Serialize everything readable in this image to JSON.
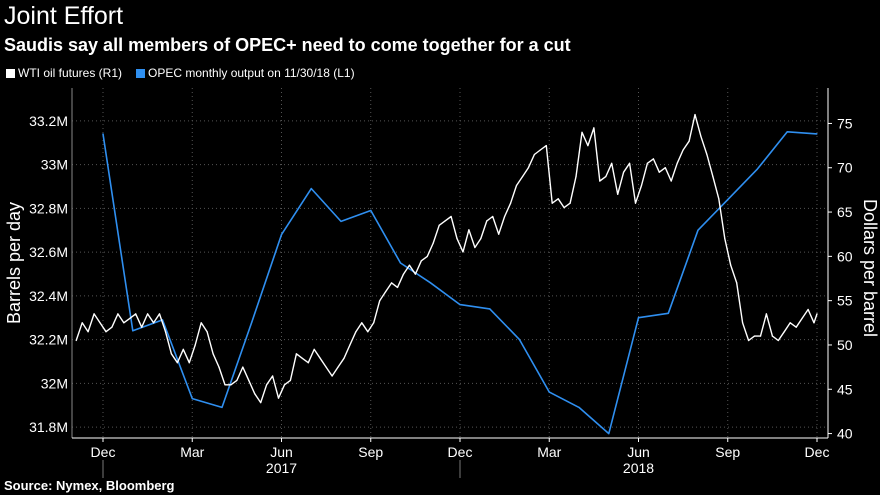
{
  "header": {
    "title": "Joint Effort",
    "subtitle": "Saudis say all members of OPEC+ need to come together for a cut"
  },
  "footer": {
    "source": "Source: Nymex, Bloomberg"
  },
  "chart_data": {
    "type": "line",
    "title": "Joint Effort",
    "subtitle": "Saudis say all members of OPEC+ need to come together for a cut",
    "legend": [
      {
        "name": "WTI oil futures (R1)",
        "color": "#ffffff"
      },
      {
        "name": "OPEC monthly output  on 11/30/18 (L1)",
        "color": "#2f8ff0"
      }
    ],
    "legend_position": "top-left",
    "x_ticks": [
      "Dec",
      "Mar",
      "Jun",
      "Sep",
      "Dec",
      "Mar",
      "Jun",
      "Sep",
      "Dec"
    ],
    "year_labels": [
      "2017",
      "2018"
    ],
    "left_axis": {
      "label": "Barrels per day",
      "range": [
        31.75,
        33.35
      ],
      "ticks": [
        31.8,
        32.0,
        32.2,
        32.4,
        32.6,
        32.8,
        33.0,
        33.2
      ],
      "tick_labels": [
        "31.8M",
        "32M",
        "32.2M",
        "32.4M",
        "32.6M",
        "32.8M",
        "33M",
        "33.2M"
      ]
    },
    "right_axis": {
      "label": "Dollars per barrel",
      "range": [
        39.5,
        79
      ],
      "ticks": [
        40,
        45,
        50,
        55,
        60,
        65,
        70,
        75
      ],
      "tick_labels": [
        "40",
        "45",
        "50",
        "55",
        "60",
        "65",
        "70",
        "75"
      ]
    },
    "x_range": [
      0,
      24.5
    ],
    "series": [
      {
        "name": "OPEC monthly output  on 11/30/18 (L1)",
        "axis": "left",
        "color": "#2f8ff0",
        "x": [
          0,
          1,
          2,
          3,
          4,
          5,
          6,
          7,
          8,
          9,
          10,
          11,
          12,
          13,
          14,
          15,
          16,
          17,
          18,
          19,
          20,
          21,
          22,
          23,
          24
        ],
        "values": [
          33.14,
          32.24,
          32.29,
          31.93,
          31.89,
          32.28,
          32.68,
          32.89,
          32.74,
          32.79,
          32.55,
          32.46,
          32.36,
          32.34,
          32.2,
          31.96,
          31.89,
          31.77,
          32.3,
          32.32,
          32.7,
          32.84,
          32.98,
          33.15,
          33.14
        ]
      },
      {
        "name": "WTI oil futures (R1)",
        "axis": "right",
        "color": "#ffffff",
        "x": [
          -0.9,
          -0.7,
          -0.5,
          -0.3,
          -0.1,
          0.1,
          0.3,
          0.5,
          0.7,
          0.9,
          1.1,
          1.3,
          1.5,
          1.7,
          1.9,
          2.1,
          2.3,
          2.5,
          2.7,
          2.9,
          3.1,
          3.3,
          3.5,
          3.7,
          3.9,
          4.1,
          4.3,
          4.5,
          4.7,
          4.9,
          5.1,
          5.3,
          5.5,
          5.7,
          5.9,
          6.1,
          6.3,
          6.5,
          6.7,
          6.9,
          7.1,
          7.3,
          7.5,
          7.7,
          7.9,
          8.1,
          8.3,
          8.5,
          8.7,
          8.9,
          9.1,
          9.3,
          9.5,
          9.7,
          9.9,
          10.1,
          10.3,
          10.5,
          10.7,
          10.9,
          11.1,
          11.3,
          11.5,
          11.7,
          11.9,
          12.1,
          12.3,
          12.5,
          12.7,
          12.9,
          13.1,
          13.3,
          13.5,
          13.7,
          13.9,
          14.1,
          14.3,
          14.5,
          14.7,
          14.9,
          15.1,
          15.3,
          15.5,
          15.7,
          15.9,
          16.1,
          16.3,
          16.5,
          16.7,
          16.9,
          17.1,
          17.3,
          17.5,
          17.7,
          17.9,
          18.1,
          18.3,
          18.5,
          18.7,
          18.9,
          19.1,
          19.3,
          19.5,
          19.7,
          19.9,
          20.1,
          20.3,
          20.5,
          20.7,
          20.9,
          21.1,
          21.3,
          21.5,
          21.7,
          21.9,
          22.1,
          22.3,
          22.5,
          22.7,
          22.9,
          23.1,
          23.3,
          23.5,
          23.7,
          23.9,
          24.0
        ],
        "values": [
          50.5,
          52.5,
          51.5,
          53.5,
          52.5,
          51.5,
          52.0,
          53.5,
          52.5,
          53.0,
          53.5,
          52.0,
          53.5,
          52.5,
          53.5,
          51.5,
          49.0,
          48.0,
          49.5,
          48.0,
          50.0,
          52.5,
          51.5,
          49.0,
          47.5,
          45.5,
          45.5,
          46.0,
          47.5,
          46.0,
          44.5,
          43.5,
          45.5,
          46.5,
          44.0,
          45.5,
          46.0,
          49.0,
          48.5,
          48.0,
          49.5,
          48.5,
          47.5,
          46.5,
          47.5,
          48.5,
          50.0,
          51.5,
          52.5,
          51.5,
          52.5,
          55.0,
          56.0,
          57.0,
          56.5,
          58.0,
          59.0,
          58.0,
          59.5,
          60.0,
          61.5,
          63.5,
          64.0,
          64.5,
          62.0,
          60.5,
          63.0,
          61.0,
          62.0,
          64.0,
          64.5,
          62.5,
          64.5,
          66.0,
          68.0,
          69.0,
          70.0,
          71.5,
          72.0,
          72.5,
          66.0,
          66.5,
          65.5,
          66.0,
          69.0,
          74.0,
          72.5,
          74.5,
          68.5,
          69.0,
          70.5,
          67.0,
          69.5,
          70.5,
          66.0,
          68.0,
          70.5,
          71.0,
          69.5,
          70.0,
          68.5,
          70.5,
          72.0,
          73.0,
          76.0,
          73.5,
          71.5,
          69.0,
          66.5,
          62.0,
          59.0,
          57.0,
          52.5,
          50.5,
          51.0,
          51.0,
          53.5,
          51.0,
          50.5,
          51.5,
          52.5,
          52.0,
          53.0,
          54.0,
          52.5,
          53.5
        ]
      }
    ]
  }
}
